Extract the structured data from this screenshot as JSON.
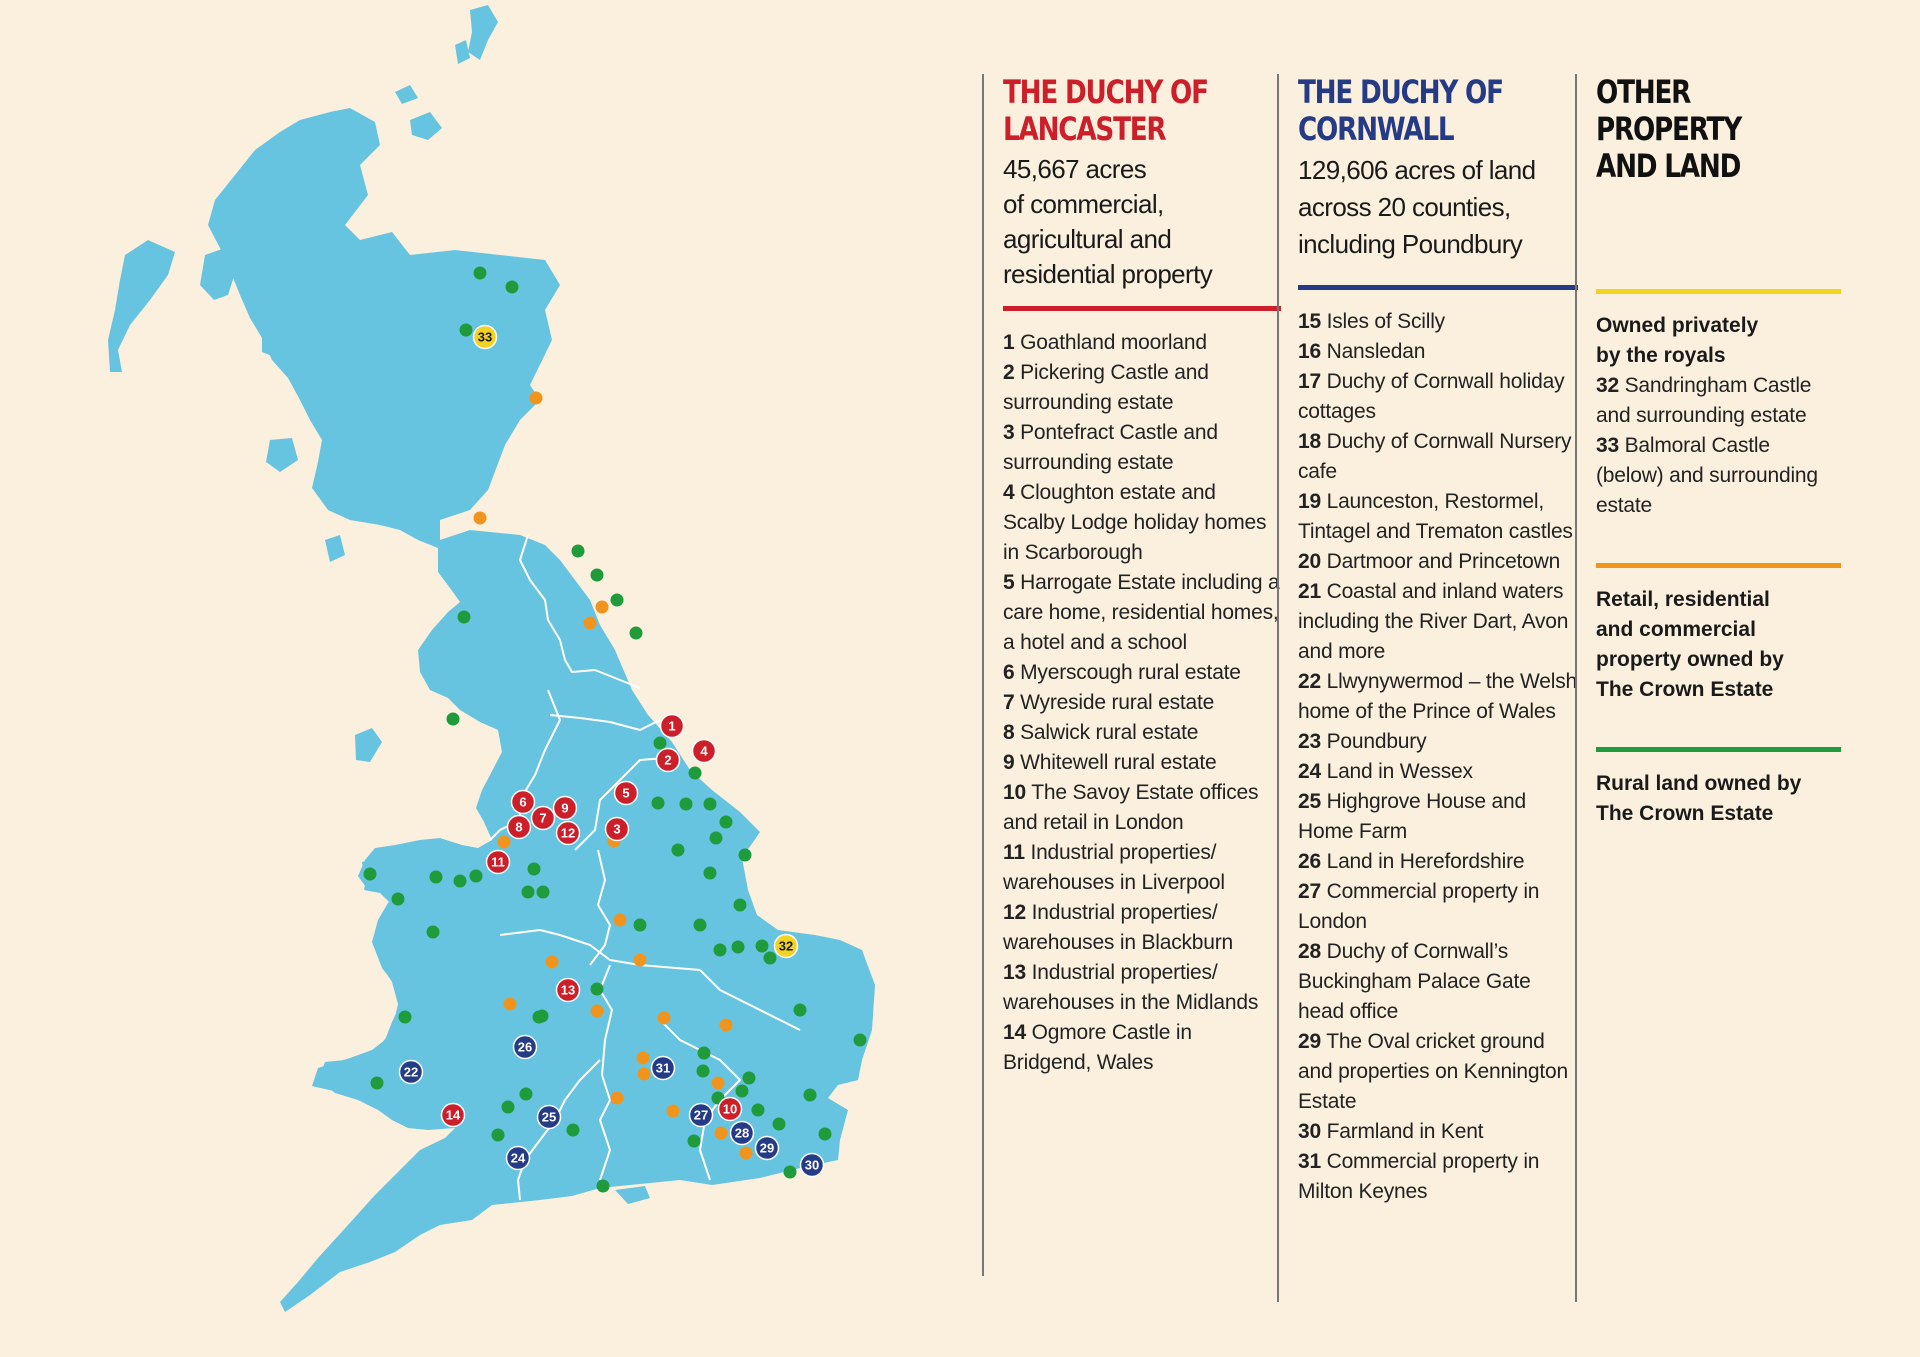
{
  "colors": {
    "background": "#fbf0de",
    "land": "#66c4e0",
    "lancaster": "#cc1f2a",
    "cornwall": "#263b86",
    "royal": "#f3d322",
    "crown_retail": "#f0941e",
    "crown_rural": "#1f9b3c"
  },
  "map": {
    "markers": [
      {
        "num": "1",
        "type": "lancaster"
      },
      {
        "num": "2",
        "type": "lancaster"
      },
      {
        "num": "3",
        "type": "lancaster"
      },
      {
        "num": "4",
        "type": "lancaster"
      },
      {
        "num": "5",
        "type": "lancaster"
      },
      {
        "num": "6",
        "type": "lancaster"
      },
      {
        "num": "7",
        "type": "lancaster"
      },
      {
        "num": "8",
        "type": "lancaster"
      },
      {
        "num": "9",
        "type": "lancaster"
      },
      {
        "num": "10",
        "type": "lancaster"
      },
      {
        "num": "11",
        "type": "lancaster"
      },
      {
        "num": "12",
        "type": "lancaster"
      },
      {
        "num": "13",
        "type": "lancaster"
      },
      {
        "num": "14",
        "type": "lancaster"
      },
      {
        "num": "22",
        "type": "cornwall"
      },
      {
        "num": "24",
        "type": "cornwall"
      },
      {
        "num": "25",
        "type": "cornwall"
      },
      {
        "num": "26",
        "type": "cornwall"
      },
      {
        "num": "27",
        "type": "cornwall"
      },
      {
        "num": "28",
        "type": "cornwall"
      },
      {
        "num": "29",
        "type": "cornwall"
      },
      {
        "num": "30",
        "type": "cornwall"
      },
      {
        "num": "31",
        "type": "cornwall"
      },
      {
        "num": "32",
        "type": "royal"
      },
      {
        "num": "33",
        "type": "royal"
      }
    ]
  },
  "lancaster": {
    "title": "THE DUCHY OF\nLANCASTER",
    "subtitle": "45,667 acres\nof commercial,\nagricultural and\nresidential property",
    "items": [
      {
        "num": "1",
        "text": "Goathland moorland"
      },
      {
        "num": "2",
        "text": "Pickering Castle and surrounding estate"
      },
      {
        "num": "3",
        "text": "Pontefract Castle and surrounding estate"
      },
      {
        "num": "4",
        "text": "Cloughton estate and Scalby Lodge holiday homes in Scarborough"
      },
      {
        "num": "5",
        "text": "Harrogate Estate including a care home, residential homes, a hotel and a school"
      },
      {
        "num": "6",
        "text": "Myerscough rural estate"
      },
      {
        "num": "7",
        "text": "Wyreside rural estate"
      },
      {
        "num": "8",
        "text": "Salwick rural estate"
      },
      {
        "num": "9",
        "text": "Whitewell rural estate"
      },
      {
        "num": "10",
        "text": "The Savoy Estate offices and retail in London"
      },
      {
        "num": "11",
        "text": "Industrial properties/ warehouses in Liverpool"
      },
      {
        "num": "12",
        "text": "Industrial properties/ warehouses in Blackburn"
      },
      {
        "num": "13",
        "text": "Industrial properties/ warehouses in the Midlands"
      },
      {
        "num": "14",
        "text": "Ogmore Castle in Bridgend, Wales"
      }
    ]
  },
  "cornwall": {
    "title": "THE DUCHY OF\nCORNWALL",
    "subtitle": "129,606 acres of land\nacross 20 counties,\nincluding Poundbury",
    "items": [
      {
        "num": "15",
        "text": "Isles of Scilly"
      },
      {
        "num": "16",
        "text": "Nansledan"
      },
      {
        "num": "17",
        "text": "Duchy of Cornwall holiday cottages"
      },
      {
        "num": "18",
        "text": "Duchy of Cornwall Nursery cafe"
      },
      {
        "num": "19",
        "text": "Launceston, Restormel, Tintagel and Trematon castles"
      },
      {
        "num": "20",
        "text": "Dartmoor and Princetown"
      },
      {
        "num": "21",
        "text": "Coastal and inland waters including the River Dart, Avon and more"
      },
      {
        "num": "22",
        "text": "Llwynywermod – the Welsh home of the Prince of Wales"
      },
      {
        "num": "23",
        "text": "Poundbury"
      },
      {
        "num": "24",
        "text": "Land in Wessex"
      },
      {
        "num": "25",
        "text": "Highgrove House and Home Farm"
      },
      {
        "num": "26",
        "text": "Land in Herefordshire"
      },
      {
        "num": "27",
        "text": "Commercial property in London"
      },
      {
        "num": "28",
        "text": "Duchy of Cornwall’s Buckingham Palace Gate head office"
      },
      {
        "num": "29",
        "text": "The Oval cricket ground and properties on Kennington Estate"
      },
      {
        "num": "30",
        "text": "Farmland in Kent"
      },
      {
        "num": "31",
        "text": "Commercial property in Milton Keynes"
      }
    ]
  },
  "other": {
    "title": "OTHER\nPROPERTY\nAND LAND",
    "royal_heading": "Owned privately\nby the royals",
    "royal_items": [
      {
        "num": "32",
        "text": "Sandringham Castle and surrounding estate"
      },
      {
        "num": "33",
        "text": "Balmoral Castle (below) and surrounding estate"
      }
    ],
    "retail_heading": "Retail, residential\nand commercial\nproperty owned by\nThe Crown Estate",
    "rural_heading": "Rural land owned by\nThe Crown Estate"
  }
}
